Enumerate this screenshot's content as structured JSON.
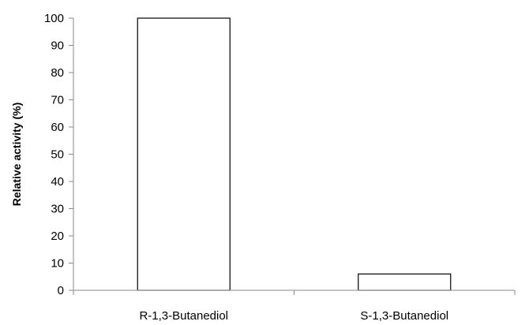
{
  "chart_data": {
    "type": "bar",
    "categories": [
      "R-1,3-Butanediol",
      "S-1,3-Butanediol"
    ],
    "values": [
      100,
      6
    ],
    "xlabel": "",
    "ylabel": "Relative activity  (%)",
    "ylim": [
      0,
      100
    ],
    "yticks": [
      0,
      10,
      20,
      30,
      40,
      50,
      60,
      70,
      80,
      90,
      100
    ],
    "grid": false,
    "legend": "none",
    "bar_fill": "#ffffff",
    "bar_stroke": "#000000"
  }
}
